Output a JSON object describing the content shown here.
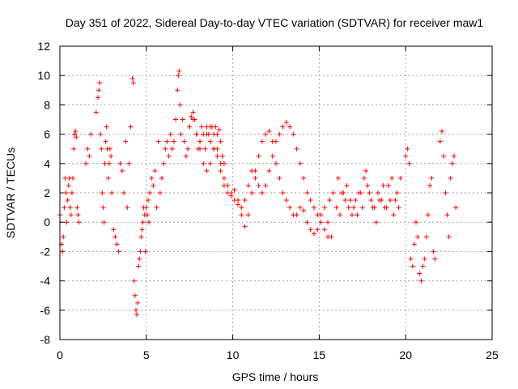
{
  "chart_data": {
    "type": "scatter",
    "title": "Day 351 of 2022, Sidereal Day-to-day VTEC variation (SDTVAR) for receiver maw1",
    "xlabel": "GPS time / hours",
    "ylabel": "SDTVAR / TECUs",
    "xlim": [
      0,
      25
    ],
    "ylim": [
      -8,
      12
    ],
    "xticks": [
      0,
      5,
      10,
      15,
      20,
      25
    ],
    "yticks": [
      -8,
      -6,
      -4,
      -2,
      0,
      2,
      4,
      6,
      8,
      10,
      12
    ],
    "grid": true,
    "marker": "+",
    "color": "#ff0000",
    "series": [
      {
        "name": "SDTVAR",
        "x": [
          0.0,
          0.1,
          0.15,
          0.2,
          0.25,
          0.3,
          0.35,
          0.4,
          0.45,
          0.5,
          0.55,
          0.6,
          0.65,
          0.7,
          0.75,
          0.8,
          0.85,
          0.9,
          0.95,
          1.0,
          1.05,
          1.1,
          1.5,
          1.6,
          1.7,
          1.8,
          2.1,
          2.2,
          2.25,
          2.3,
          2.35,
          2.4,
          2.45,
          2.5,
          2.55,
          2.6,
          2.65,
          2.7,
          2.75,
          2.8,
          2.85,
          2.9,
          2.95,
          3.0,
          3.1,
          3.2,
          3.3,
          3.4,
          3.5,
          3.6,
          3.7,
          3.8,
          3.9,
          4.0,
          4.1,
          4.2,
          4.25,
          4.3,
          4.35,
          4.4,
          4.45,
          4.5,
          4.55,
          4.6,
          4.65,
          4.7,
          4.75,
          4.8,
          4.85,
          4.9,
          4.95,
          5.0,
          5.05,
          5.1,
          5.15,
          5.2,
          5.3,
          5.4,
          5.5,
          5.6,
          5.7,
          5.8,
          5.9,
          6.0,
          6.1,
          6.2,
          6.3,
          6.4,
          6.5,
          6.6,
          6.7,
          6.8,
          6.85,
          6.9,
          6.95,
          7.0,
          7.1,
          7.2,
          7.3,
          7.4,
          7.5,
          7.6,
          7.7,
          7.8,
          7.9,
          8.0,
          8.1,
          8.2,
          8.3,
          8.4,
          8.5,
          8.6,
          8.7,
          8.8,
          8.9,
          9.0,
          9.1,
          9.2,
          9.3,
          9.4,
          9.5,
          7.5,
          7.7,
          7.9,
          8.1,
          8.3,
          8.5,
          8.7,
          8.9,
          9.1,
          9.3,
          9.5,
          9.7,
          9.9,
          10.1,
          10.3,
          10.5,
          10.7,
          10.9,
          11.1,
          11.3,
          11.5,
          11.7,
          11.9,
          12.1,
          12.3,
          12.5,
          12.7,
          12.9,
          13.1,
          13.3,
          13.5,
          13.7,
          13.9,
          14.1,
          14.3,
          14.5,
          14.7,
          14.9,
          15.1,
          15.3,
          15.5,
          15.7,
          8.5,
          8.7,
          8.9,
          9.1,
          9.3,
          9.5,
          9.7,
          9.9,
          10.1,
          10.3,
          10.5,
          10.7,
          10.9,
          11.1,
          11.3,
          11.5,
          11.7,
          11.9,
          12.1,
          12.3,
          12.5,
          12.7,
          12.9,
          13.1,
          13.3,
          13.5,
          13.7,
          13.9,
          14.1,
          14.3,
          14.5,
          14.7,
          14.9,
          15.1,
          15.3,
          15.5,
          15.6,
          15.8,
          16.0,
          16.2,
          16.4,
          16.6,
          16.8,
          17.0,
          17.2,
          17.4,
          17.6,
          17.8,
          18.0,
          18.2,
          18.4,
          18.6,
          18.8,
          19.0,
          19.2,
          19.4,
          19.6,
          16.1,
          16.3,
          16.5,
          16.7,
          16.9,
          17.1,
          17.3,
          17.5,
          17.7,
          17.9,
          18.1,
          18.3,
          18.5,
          18.7,
          18.9,
          19.1,
          19.3,
          19.5,
          19.7,
          20.0,
          20.1,
          20.2,
          20.3,
          20.4,
          20.5,
          20.6,
          20.7,
          20.8,
          20.9,
          21.0,
          21.1,
          21.2,
          21.3,
          21.4,
          21.5,
          21.6,
          21.7,
          22.0,
          22.1,
          22.2,
          22.3,
          22.4,
          22.5,
          22.6,
          22.7,
          22.8,
          22.9
        ],
        "y": [
          0.5,
          -1.5,
          -2.0,
          -1.0,
          1.0,
          3.0,
          2.0,
          0.0,
          1.5,
          2.5,
          3.0,
          1.0,
          0.5,
          2.0,
          3.0,
          5.0,
          6.0,
          6.2,
          5.8,
          1.0,
          0.5,
          0.0,
          4.0,
          5.0,
          4.5,
          6.0,
          7.5,
          8.5,
          9.0,
          9.5,
          6.0,
          5.0,
          2.0,
          1.0,
          0.0,
          4.0,
          5.5,
          6.5,
          5.0,
          3.0,
          4.0,
          5.0,
          4.5,
          2.0,
          -0.5,
          -1.0,
          -1.5,
          -2.0,
          4.0,
          3.5,
          2.0,
          5.5,
          1.0,
          4.0,
          6.5,
          9.8,
          9.5,
          -4.0,
          -5.0,
          -6.0,
          -6.3,
          -5.5,
          -3.0,
          -2.5,
          -2.0,
          -1.0,
          -0.5,
          0.0,
          1.0,
          0.5,
          -2.0,
          1.0,
          0.5,
          1.5,
          0.0,
          2.0,
          3.0,
          2.5,
          3.5,
          1.0,
          5.5,
          2.0,
          3.0,
          4.0,
          5.0,
          5.5,
          4.5,
          6.0,
          5.0,
          5.5,
          7.0,
          9.0,
          10.0,
          10.3,
          8.0,
          6.0,
          7.0,
          5.5,
          4.5,
          5.0,
          6.5,
          7.2,
          7.5,
          7.0,
          6.0,
          5.0,
          5.5,
          6.5,
          6.0,
          5.0,
          6.5,
          6.0,
          5.5,
          6.5,
          5.0,
          6.5,
          6.0,
          6.3,
          5.5,
          4.5,
          4.0,
          6.5,
          7.0,
          6.0,
          5.0,
          4.0,
          3.5,
          4.0,
          5.0,
          4.5,
          3.5,
          2.5,
          2.0,
          1.8,
          2.2,
          1.5,
          0.5,
          -0.3,
          0.5,
          2.0,
          3.5,
          4.5,
          5.5,
          6.0,
          6.2,
          5.5,
          4.0,
          3.0,
          2.0,
          1.5,
          1.0,
          0.5,
          0.5,
          1.0,
          0.8,
          0.0,
          -0.5,
          -0.8,
          -0.5,
          0.5,
          1.0,
          0.0,
          -1.0,
          6.0,
          6.5,
          6.0,
          5.0,
          4.0,
          3.0,
          2.5,
          2.0,
          1.5,
          1.2,
          1.0,
          1.5,
          2.5,
          3.5,
          3.0,
          2.5,
          2.0,
          2.5,
          3.5,
          4.5,
          5.5,
          6.0,
          6.5,
          6.8,
          6.5,
          6.0,
          5.0,
          4.0,
          3.0,
          2.0,
          1.5,
          1.0,
          0.5,
          0.0,
          -0.5,
          -1.0,
          1.5,
          2.0,
          1.0,
          0.5,
          2.0,
          2.5,
          1.5,
          1.0,
          0.5,
          2.0,
          3.0,
          2.5,
          1.5,
          1.0,
          2.0,
          1.5,
          1.0,
          2.5,
          3.0,
          1.5,
          1.0,
          3.0,
          2.0,
          1.5,
          1.0,
          0.5,
          1.5,
          2.0,
          1.0,
          3.5,
          2.0,
          1.0,
          0.0,
          1.5,
          2.5,
          1.0,
          1.5,
          0.5,
          2.0,
          3.0,
          4.5,
          5.0,
          4.0,
          -2.5,
          -3.0,
          -1.5,
          0.0,
          -1.0,
          -3.5,
          -4.0,
          -3.0,
          -2.5,
          -1.0,
          0.5,
          2.5,
          3.0,
          -2.0,
          -2.5,
          5.5,
          6.2,
          4.5,
          2.0,
          0.5,
          -1.0,
          3.0,
          4.0,
          4.5,
          1.0
        ]
      }
    ]
  }
}
